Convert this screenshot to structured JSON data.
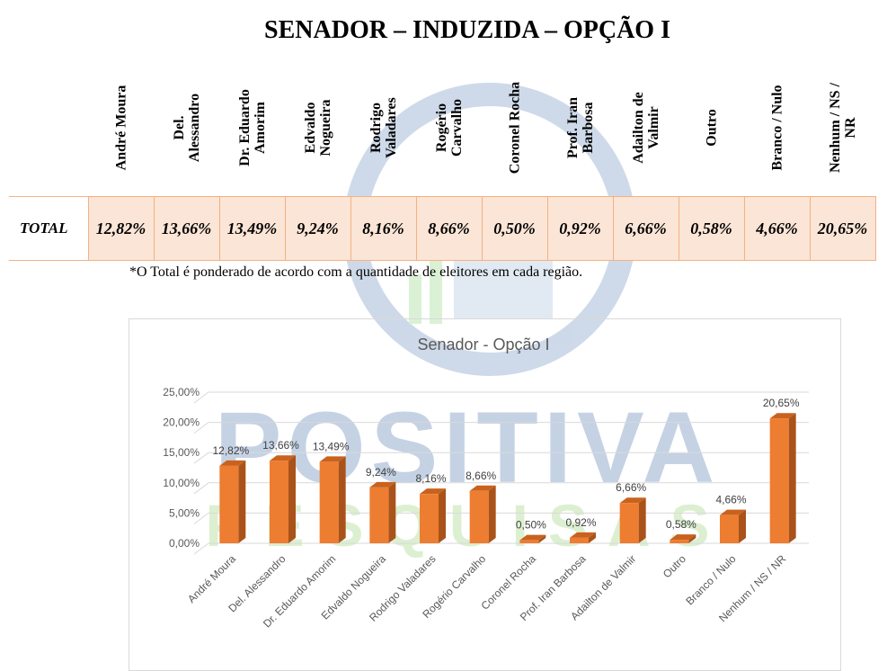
{
  "title": "SENADOR – INDUZIDA – OPÇÃO I",
  "table": {
    "row_label": "TOTAL",
    "headers": [
      [
        "André Moura"
      ],
      [
        "Del.",
        "Alessandro"
      ],
      [
        "Dr. Eduardo",
        "Amorim"
      ],
      [
        "Edvaldo",
        "Nogueira"
      ],
      [
        "Rodrigo",
        "Valadares"
      ],
      [
        "Rogério",
        "Carvalho"
      ],
      [
        "Coronel Rocha"
      ],
      [
        "Prof. Iran",
        "Barbosa"
      ],
      [
        "Adailton de",
        "Valmir"
      ],
      [
        "Outro"
      ],
      [
        "Branco / Nulo"
      ],
      [
        "Nenhum / NS /",
        "NR"
      ]
    ],
    "values": [
      "12,82%",
      "13,66%",
      "13,49%",
      "9,24%",
      "8,16%",
      "8,66%",
      "0,50%",
      "0,92%",
      "6,66%",
      "0,58%",
      "4,66%",
      "20,65%"
    ]
  },
  "note": "*O Total é ponderado de acordo com a quantidade de eleitores em cada região.",
  "watermark": {
    "line1": "POSITIVA",
    "line2": "PESQUISAS",
    "color1": "#3f6ea8",
    "color2": "#8fd16a"
  },
  "chart_data": {
    "type": "bar",
    "title": "Senador - Opção I",
    "categories": [
      "André Moura",
      "Del. Alessandro",
      "Dr. Eduardo Amorim",
      "Edvaldo Nogueira",
      "Rodrigo Valadares",
      "Rogério Carvalho",
      "Coronel Rocha",
      "Prof. Iran Barbosa",
      "Adailton de Valmir",
      "Outro",
      "Branco / Nulo",
      "Nenhum / NS / NR"
    ],
    "values": [
      12.82,
      13.66,
      13.49,
      9.24,
      8.16,
      8.66,
      0.5,
      0.92,
      6.66,
      0.58,
      4.66,
      20.65
    ],
    "data_labels": [
      "12,82%",
      "13,66%",
      "13,49%",
      "9,24%",
      "8,16%",
      "8,66%",
      "0,50%",
      "0,92%",
      "6,66%",
      "0,58%",
      "4,66%",
      "20,65%"
    ],
    "ylim": [
      0,
      25
    ],
    "yticks": [
      0,
      5,
      10,
      15,
      20,
      25
    ],
    "ytick_labels": [
      "0,00%",
      "5,00%",
      "10,00%",
      "15,00%",
      "20,00%",
      "25,00%"
    ],
    "grid": true,
    "bar_color": "#ed7d31",
    "bar_side_color": "#a9531a",
    "bar_top_color": "#c9621d",
    "xlabel": "",
    "ylabel": ""
  }
}
